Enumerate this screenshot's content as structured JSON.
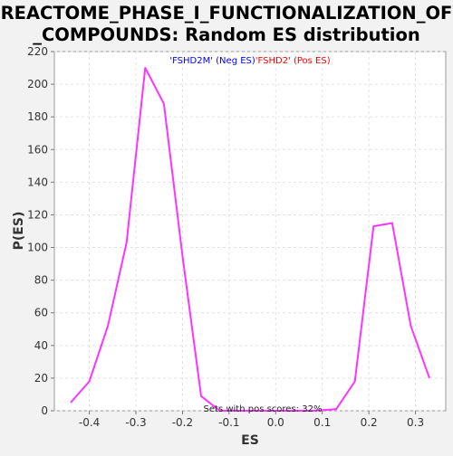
{
  "chart_data": {
    "type": "line",
    "title_lines": [
      "REACTOME_PHASE_I_FUNCTIONALIZATION_OF",
      "_COMPOUNDS: Random ES distribution"
    ],
    "xlabel": "ES",
    "ylabel": "P(ES)",
    "xlim": [
      -0.475,
      0.365
    ],
    "ylim": [
      0,
      220
    ],
    "x_ticks": [
      -0.4,
      -0.3,
      -0.2,
      -0.1,
      0.0,
      0.1,
      0.2,
      0.3
    ],
    "x_tick_labels": [
      "-0.4",
      "-0.3",
      "-0.2",
      "-0.1",
      "0.0",
      "0.1",
      "0.2",
      "0.3"
    ],
    "y_ticks": [
      0,
      20,
      40,
      60,
      80,
      100,
      120,
      140,
      160,
      180,
      200,
      220
    ],
    "y_tick_labels": [
      "0",
      "20",
      "40",
      "60",
      "80",
      "100",
      "120",
      "140",
      "160",
      "180",
      "200",
      "220"
    ],
    "grid": true,
    "legend": [
      {
        "label": "'FSHD2M' (Neg ES)",
        "color": "#0000ff"
      },
      {
        "label": "'FSHD2' (Pos ES)",
        "color": "#ff0000"
      }
    ],
    "annotation": "Sets with pos scores: 32%",
    "series": [
      {
        "color": "#ff33ff",
        "x": [
          -0.44,
          -0.4,
          -0.36,
          -0.32,
          -0.28,
          -0.24,
          -0.2,
          -0.16,
          -0.12,
          -0.08,
          -0.04,
          0.0,
          0.04,
          0.08,
          0.13,
          0.17,
          0.21,
          0.25,
          0.29,
          0.33
        ],
        "y": [
          5,
          18,
          52,
          103,
          210,
          188,
          95,
          9,
          0,
          0,
          0,
          0,
          0,
          0,
          1,
          18,
          113,
          115,
          52,
          20
        ]
      }
    ]
  }
}
